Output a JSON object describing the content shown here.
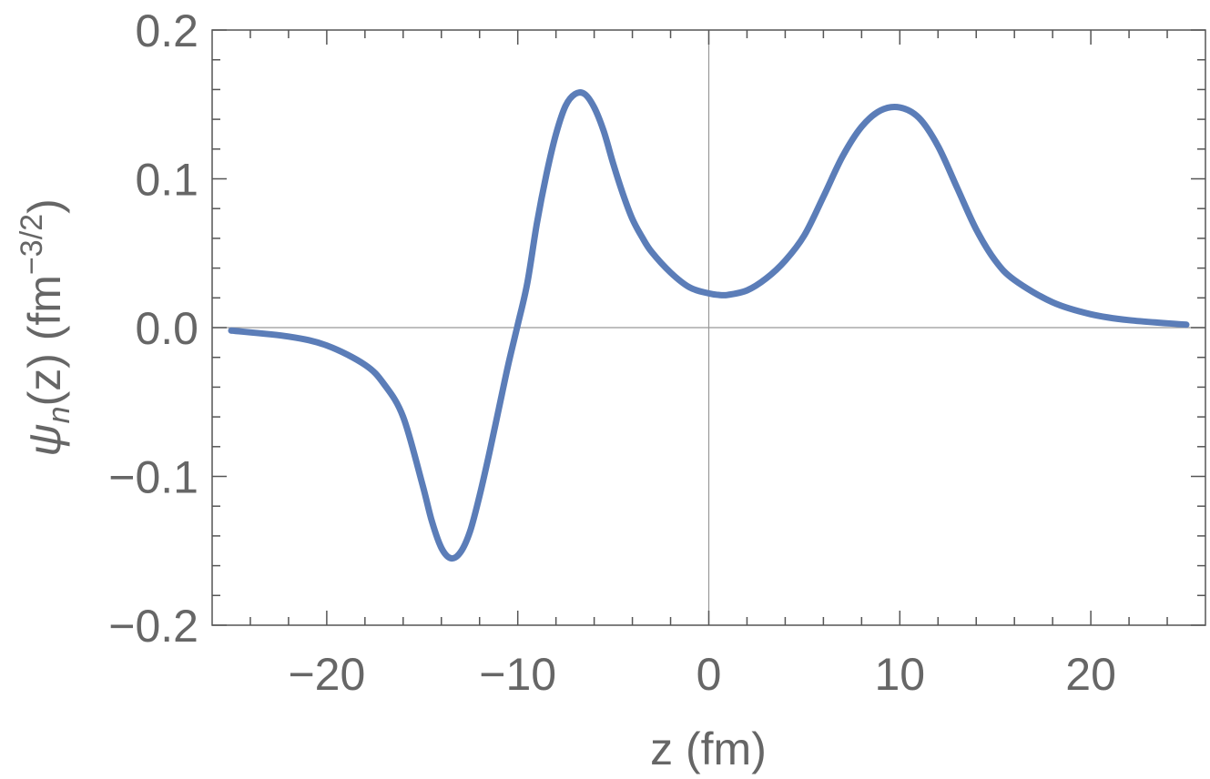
{
  "chart_data": {
    "type": "line",
    "title": "",
    "xlabel": "z (fm)",
    "ylabel": {
      "psi": "ψ",
      "sub": "n",
      "mid": "(z) (fm",
      "sup": "−3/2",
      "end": ")"
    },
    "xlim": [
      -26,
      26
    ],
    "ylim": [
      -0.2,
      0.2
    ],
    "x_ticks": [
      -20,
      -10,
      0,
      10,
      20
    ],
    "x_tick_labels": [
      "−20",
      "−10",
      "0",
      "10",
      "20"
    ],
    "y_ticks": [
      -0.2,
      -0.1,
      0.0,
      0.1,
      0.2
    ],
    "y_tick_labels": [
      "−0.2",
      "−0.1",
      "0.0",
      "0.1",
      "0.2"
    ],
    "grid": false,
    "series_color": "#5b7db8",
    "series": [
      {
        "x": [
          -25,
          -22,
          -20,
          -18,
          -17,
          -16,
          -15,
          -14.5,
          -14,
          -13.5,
          -13,
          -12.5,
          -12,
          -11.5,
          -11,
          -10.5,
          -10,
          -9.5,
          -9,
          -8.5,
          -8,
          -7.5,
          -7,
          -6.5,
          -6,
          -5.5,
          -5,
          -4.5,
          -4,
          -3.5,
          -3,
          -2,
          -1,
          0,
          0.5,
          1,
          2,
          3,
          4,
          5,
          6,
          7,
          8,
          9,
          10,
          11,
          12,
          13,
          14,
          15,
          16,
          18,
          20,
          22,
          25
        ],
        "y": [
          -0.002,
          -0.006,
          -0.012,
          -0.025,
          -0.038,
          -0.06,
          -0.105,
          -0.13,
          -0.148,
          -0.155,
          -0.151,
          -0.137,
          -0.113,
          -0.085,
          -0.055,
          -0.025,
          0.002,
          0.03,
          0.07,
          0.103,
          0.13,
          0.149,
          0.157,
          0.157,
          0.148,
          0.132,
          0.11,
          0.09,
          0.073,
          0.061,
          0.051,
          0.037,
          0.027,
          0.023,
          0.022,
          0.022,
          0.025,
          0.033,
          0.045,
          0.062,
          0.088,
          0.115,
          0.135,
          0.146,
          0.148,
          0.141,
          0.122,
          0.094,
          0.066,
          0.045,
          0.032,
          0.017,
          0.009,
          0.005,
          0.002
        ]
      }
    ]
  }
}
